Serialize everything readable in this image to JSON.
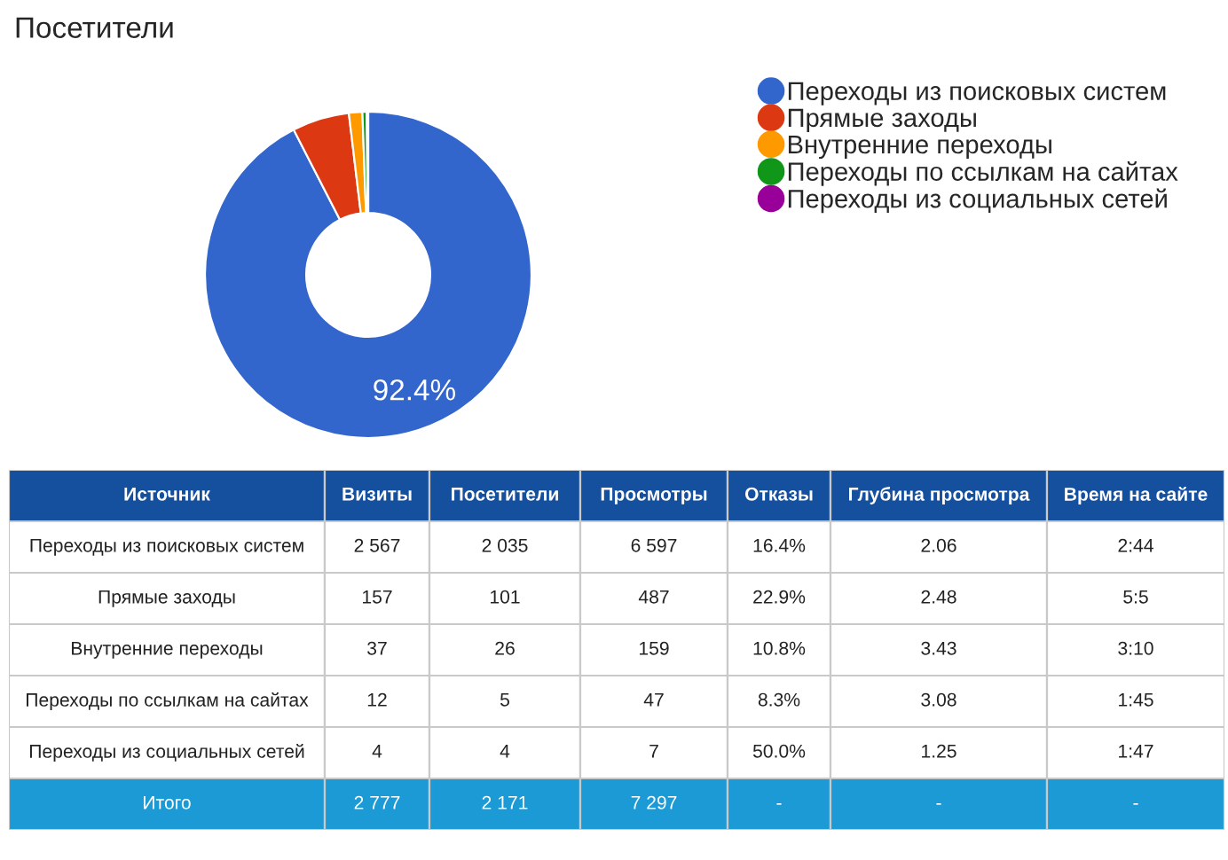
{
  "chart_data": [
    {
      "type": "donut",
      "title": "Посетители",
      "categories": [
        "Переходы из поисковых систем",
        "Прямые заходы",
        "Внутренние переходы",
        "Переходы по ссылкам на сайтах",
        "Переходы из социальных сетей"
      ],
      "values": [
        92.44,
        5.65,
        1.33,
        0.43,
        0.14
      ],
      "value_labels": [
        "92.4%",
        null,
        null,
        null,
        null
      ],
      "colors": [
        "#3366cc",
        "#dc3912",
        "#ff9900",
        "#109618",
        "#990099"
      ],
      "legend": "right"
    },
    {
      "type": "other",
      "categories": [
        "Источник",
        "Визиты",
        "Посетители",
        "Просмотры",
        "Отказы",
        "Глубина просмотра",
        "Время на сайте"
      ],
      "annotations": [
        "Переходы из поисковых систем",
        "2 567",
        "2 035",
        "6 597",
        "16.4%",
        "2.06",
        "2:44",
        "Прямые заходы",
        "157",
        "101",
        "487",
        "22.9%",
        "2.48",
        "5:5",
        "Внутренние переходы",
        "37",
        "26",
        "159",
        "10.8%",
        "3.43",
        "3:10",
        "Переходы по ссылкам на сайтах",
        "12",
        "5",
        "47",
        "8.3%",
        "3.08",
        "1:45",
        "Переходы из социальных сетей",
        "4",
        "4",
        "7",
        "50.0%",
        "1.25",
        "1:47",
        "Итого",
        "2 777",
        "2 171",
        "7 297",
        "-",
        "-",
        "-"
      ]
    }
  ]
}
